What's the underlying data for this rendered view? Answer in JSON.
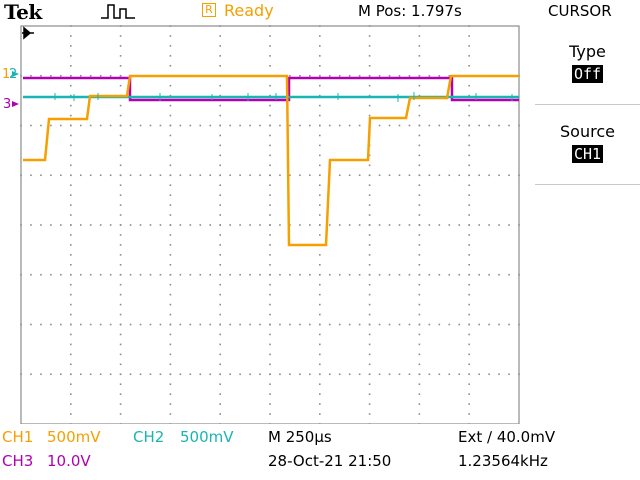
{
  "header": {
    "brand": "Tek",
    "trigger_icon": "pulse-trigger-icon",
    "run_box": "R",
    "run_status": "Ready",
    "mpos": "M Pos: 1.797s",
    "menu_title": "CURSOR"
  },
  "markers": {
    "ch1_label": "1",
    "ch2_label": "2",
    "ch3_label": "3",
    "arrow": "trigger-position-arrow"
  },
  "menu": {
    "type_label": "Type",
    "type_value": "Off",
    "source_label": "Source",
    "source_value": "CH1"
  },
  "footer": {
    "ch1_name": "CH1",
    "ch1_scale": "500mV",
    "ch2_name": "CH2",
    "ch2_scale": "500mV",
    "ch3_name": "CH3",
    "ch3_scale": "10.0V",
    "timebase": "M 250µs",
    "date": "28-Oct-21 21:50",
    "trigger": "Ext ∕ 40.0mV",
    "frequency": "1.23564kHz"
  },
  "colors": {
    "ch1": "#f5a000",
    "ch2": "#19b4b4",
    "ch3": "#b000b0",
    "grid": "#8c8c8c"
  }
}
